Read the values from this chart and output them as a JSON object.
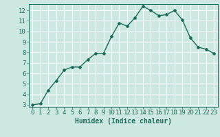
{
  "x": [
    0,
    1,
    2,
    3,
    4,
    5,
    6,
    7,
    8,
    9,
    10,
    11,
    12,
    13,
    14,
    15,
    16,
    17,
    18,
    19,
    20,
    21,
    22,
    23
  ],
  "y": [
    3.0,
    3.1,
    4.4,
    5.3,
    6.3,
    6.6,
    6.6,
    7.3,
    7.9,
    7.9,
    9.5,
    10.8,
    10.5,
    11.3,
    12.4,
    12.0,
    11.5,
    11.6,
    12.0,
    11.1,
    9.4,
    8.5,
    8.3,
    7.9
  ],
  "line_color": "#1a6b5a",
  "marker": "D",
  "marker_size": 2,
  "bg_color": "#cce8e0",
  "grid_color": "#ffffff",
  "axis_color": "#1a6b5a",
  "xlabel": "Humidex (Indice chaleur)",
  "ylim_min": 2.8,
  "ylim_max": 12.6,
  "xlim_min": -0.5,
  "xlim_max": 23.5,
  "yticks": [
    3,
    4,
    5,
    6,
    7,
    8,
    9,
    10,
    11,
    12
  ],
  "xticks": [
    0,
    1,
    2,
    3,
    4,
    5,
    6,
    7,
    8,
    9,
    10,
    11,
    12,
    13,
    14,
    15,
    16,
    17,
    18,
    19,
    20,
    21,
    22,
    23
  ],
  "xlabel_fontsize": 7,
  "tick_fontsize": 6.5,
  "line_width": 1.0
}
